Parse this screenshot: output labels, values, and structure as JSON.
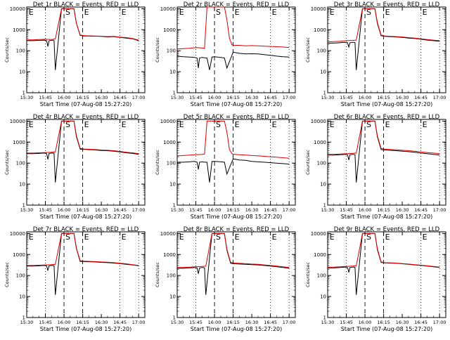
{
  "colors": {
    "events": "#000000",
    "lld": "#e00000",
    "background": "#ffffff"
  },
  "shared": {
    "xlabel": "Start Time (07-Aug-08 15:27:20)",
    "ylabel": "Counts/sec",
    "xticks": [
      "15:30",
      "15:45",
      "16:00",
      "16:15",
      "16:30",
      "16:45",
      "17:00"
    ],
    "yticks": [
      "1",
      "10",
      "100",
      "1000",
      "10000"
    ],
    "ylim": [
      1,
      12000
    ],
    "markers": [
      "E",
      "S",
      "E",
      "E"
    ]
  },
  "chart_data": [
    {
      "type": "line",
      "title": "Det 1r BLACK = Events, RED = LLD",
      "series": [
        {
          "name": "Events",
          "x": [
            0,
            5,
            10,
            14,
            16,
            17,
            18,
            20,
            21,
            22,
            23,
            28,
            30,
            33,
            36,
            38,
            40,
            43,
            46,
            55,
            60,
            65,
            70,
            75,
            80,
            85,
            90
          ],
          "values": [
            300,
            300,
            310,
            320,
            300,
            160,
            300,
            310,
            320,
            300,
            12,
            10000,
            10000,
            10000,
            10000,
            10000,
            2000,
            540,
            500,
            490,
            480,
            450,
            470,
            430,
            400,
            370,
            300
          ]
        },
        {
          "name": "LLD",
          "x": [
            0,
            5,
            10,
            15,
            20,
            23,
            28,
            30,
            33,
            36,
            38,
            40,
            43,
            46,
            55,
            60,
            65,
            70,
            75,
            80,
            85,
            90
          ],
          "values": [
            330,
            330,
            340,
            350,
            340,
            360,
            10000,
            10000,
            10000,
            10000,
            10000,
            2000,
            560,
            520,
            500,
            490,
            470,
            480,
            440,
            420,
            380,
            320
          ]
        }
      ]
    },
    {
      "type": "line",
      "title": "Det 2r BLACK = Events, RED = LLD",
      "series": [
        {
          "name": "Events",
          "x": [
            0,
            5,
            10,
            14,
            16,
            17,
            18,
            20,
            22,
            24,
            26,
            28,
            30,
            35,
            38,
            40,
            45,
            50,
            55,
            60,
            65,
            70,
            75,
            80,
            85,
            90
          ],
          "values": [
            55,
            52,
            50,
            48,
            45,
            15,
            45,
            48,
            46,
            45,
            12,
            50,
            52,
            48,
            45,
            15,
            85,
            75,
            70,
            72,
            70,
            65,
            60,
            55,
            52,
            50
          ]
        },
        {
          "name": "LLD",
          "x": [
            0,
            5,
            10,
            15,
            20,
            22,
            24,
            26,
            28,
            30,
            35,
            38,
            40,
            42,
            44,
            46,
            50,
            55,
            60,
            65,
            70,
            75,
            80,
            85,
            90
          ],
          "values": [
            120,
            125,
            130,
            140,
            135,
            130,
            12000,
            12000,
            12000,
            12000,
            12000,
            12000,
            3000,
            400,
            190,
            180,
            180,
            170,
            175,
            170,
            165,
            160,
            155,
            150,
            140
          ]
        }
      ]
    },
    {
      "type": "line",
      "title": "Det 3r BLACK = Events, RED = LLD",
      "series": [
        {
          "name": "Events",
          "x": [
            0,
            5,
            10,
            14,
            16,
            17,
            18,
            20,
            21,
            22,
            23,
            28,
            30,
            33,
            36,
            38,
            40,
            43,
            46,
            55,
            60,
            65,
            70,
            75,
            80,
            85,
            90
          ],
          "values": [
            230,
            230,
            240,
            250,
            240,
            150,
            240,
            250,
            250,
            240,
            12,
            10000,
            10000,
            10000,
            10000,
            10000,
            2000,
            520,
            480,
            450,
            430,
            400,
            380,
            350,
            320,
            300,
            280
          ]
        },
        {
          "name": "LLD",
          "x": [
            0,
            5,
            10,
            15,
            20,
            23,
            28,
            30,
            33,
            36,
            38,
            40,
            43,
            46,
            55,
            60,
            65,
            70,
            75,
            80,
            85,
            90
          ],
          "values": [
            260,
            270,
            280,
            300,
            310,
            320,
            10000,
            10000,
            10000,
            10000,
            10000,
            2200,
            560,
            500,
            470,
            450,
            420,
            400,
            370,
            340,
            320,
            300
          ]
        }
      ]
    },
    {
      "type": "line",
      "title": "Det 4r BLACK = Events, RED = LLD",
      "series": [
        {
          "name": "Events",
          "x": [
            0,
            5,
            10,
            14,
            16,
            17,
            18,
            20,
            21,
            22,
            23,
            28,
            30,
            33,
            36,
            38,
            40,
            43,
            46,
            55,
            60,
            65,
            70,
            75,
            80,
            85,
            90
          ],
          "values": [
            280,
            280,
            290,
            300,
            290,
            150,
            290,
            300,
            300,
            290,
            12,
            10000,
            10000,
            10000,
            10000,
            10000,
            1800,
            460,
            450,
            420,
            400,
            390,
            370,
            340,
            310,
            290,
            260
          ]
        },
        {
          "name": "LLD",
          "x": [
            0,
            5,
            10,
            15,
            20,
            23,
            28,
            30,
            33,
            36,
            38,
            40,
            43,
            46,
            55,
            60,
            65,
            70,
            75,
            80,
            85,
            90
          ],
          "values": [
            300,
            300,
            310,
            320,
            330,
            340,
            10000,
            10000,
            10000,
            10000,
            10000,
            2000,
            500,
            470,
            440,
            420,
            410,
            390,
            360,
            330,
            310,
            280
          ]
        }
      ]
    },
    {
      "type": "line",
      "title": "Det 5r BLACK = Events, RED = LLD",
      "series": [
        {
          "name": "Events",
          "x": [
            0,
            5,
            10,
            14,
            16,
            17,
            18,
            20,
            22,
            24,
            26,
            28,
            30,
            35,
            38,
            40,
            45,
            50,
            55,
            60,
            65,
            70,
            75,
            80,
            85,
            90
          ],
          "values": [
            110,
            110,
            115,
            120,
            110,
            50,
            110,
            115,
            110,
            110,
            12,
            120,
            120,
            115,
            110,
            30,
            160,
            140,
            135,
            120,
            115,
            110,
            105,
            100,
            95,
            90
          ]
        },
        {
          "name": "LLD",
          "x": [
            0,
            5,
            10,
            15,
            20,
            22,
            24,
            26,
            28,
            30,
            35,
            38,
            40,
            42,
            44,
            46,
            50,
            55,
            60,
            65,
            70,
            75,
            80,
            85,
            90
          ],
          "values": [
            220,
            230,
            240,
            250,
            260,
            270,
            10000,
            10000,
            10000,
            10000,
            10000,
            10000,
            3000,
            450,
            280,
            260,
            250,
            240,
            230,
            220,
            210,
            200,
            190,
            180,
            170
          ]
        }
      ]
    },
    {
      "type": "line",
      "title": "Det 6r BLACK = Events, RED = LLD",
      "series": [
        {
          "name": "Events",
          "x": [
            0,
            5,
            10,
            14,
            16,
            17,
            18,
            20,
            21,
            22,
            23,
            28,
            30,
            33,
            36,
            38,
            40,
            43,
            46,
            55,
            60,
            65,
            70,
            75,
            80,
            85,
            90
          ],
          "values": [
            240,
            240,
            250,
            260,
            250,
            140,
            250,
            260,
            260,
            250,
            12,
            10000,
            10000,
            10000,
            10000,
            10000,
            1800,
            440,
            420,
            390,
            370,
            350,
            330,
            300,
            280,
            260,
            240
          ]
        },
        {
          "name": "LLD",
          "x": [
            0,
            5,
            10,
            15,
            20,
            23,
            28,
            30,
            33,
            36,
            38,
            40,
            43,
            46,
            55,
            60,
            65,
            70,
            75,
            80,
            85,
            90
          ],
          "values": [
            260,
            260,
            270,
            280,
            290,
            300,
            10000,
            10000,
            10000,
            10000,
            10000,
            2000,
            500,
            460,
            430,
            410,
            390,
            370,
            340,
            320,
            300,
            280
          ]
        }
      ]
    },
    {
      "type": "line",
      "title": "Det 7r BLACK = Events, RED = LLD",
      "series": [
        {
          "name": "Events",
          "x": [
            0,
            5,
            10,
            14,
            16,
            17,
            18,
            20,
            21,
            22,
            23,
            28,
            30,
            33,
            36,
            38,
            40,
            43,
            46,
            55,
            60,
            65,
            70,
            75,
            80,
            85,
            90
          ],
          "values": [
            280,
            280,
            290,
            300,
            290,
            170,
            290,
            300,
            300,
            290,
            12,
            10000,
            10000,
            10000,
            10000,
            10000,
            1900,
            470,
            460,
            440,
            420,
            410,
            390,
            370,
            340,
            320,
            290
          ]
        },
        {
          "name": "LLD",
          "x": [
            0,
            5,
            10,
            15,
            20,
            23,
            28,
            30,
            33,
            36,
            38,
            40,
            43,
            46,
            55,
            60,
            65,
            70,
            75,
            80,
            85,
            90
          ],
          "values": [
            300,
            300,
            310,
            320,
            330,
            340,
            10000,
            10000,
            10000,
            10000,
            10000,
            2000,
            510,
            480,
            460,
            440,
            430,
            410,
            380,
            360,
            330,
            300
          ]
        }
      ]
    },
    {
      "type": "line",
      "title": "Det 8r BLACK = Events, RED = LLD",
      "series": [
        {
          "name": "Events",
          "x": [
            0,
            5,
            10,
            14,
            16,
            17,
            18,
            20,
            21,
            22,
            23,
            28,
            30,
            33,
            36,
            38,
            40,
            43,
            46,
            55,
            60,
            65,
            70,
            75,
            80,
            85,
            90
          ],
          "values": [
            220,
            220,
            230,
            240,
            230,
            120,
            230,
            240,
            240,
            230,
            12,
            10000,
            10000,
            10000,
            10000,
            10000,
            1600,
            380,
            360,
            340,
            330,
            320,
            300,
            280,
            260,
            240,
            220
          ]
        },
        {
          "name": "LLD",
          "x": [
            0,
            5,
            10,
            15,
            20,
            23,
            28,
            30,
            33,
            36,
            38,
            40,
            43,
            46,
            55,
            60,
            65,
            70,
            75,
            80,
            85,
            90
          ],
          "values": [
            240,
            240,
            250,
            260,
            270,
            280,
            10000,
            10000,
            10000,
            10000,
            10000,
            1800,
            420,
            390,
            370,
            350,
            340,
            320,
            300,
            280,
            260,
            240
          ]
        }
      ]
    },
    {
      "type": "line",
      "title": "Det 9r BLACK = Events, RED = LLD",
      "series": [
        {
          "name": "Events",
          "x": [
            0,
            5,
            10,
            14,
            16,
            17,
            18,
            20,
            21,
            22,
            23,
            28,
            30,
            33,
            36,
            38,
            40,
            43,
            46,
            55,
            60,
            65,
            70,
            75,
            80,
            85,
            90
          ],
          "values": [
            230,
            230,
            240,
            250,
            240,
            140,
            240,
            250,
            250,
            240,
            12,
            10000,
            10000,
            10000,
            10000,
            10000,
            1700,
            420,
            400,
            380,
            360,
            340,
            320,
            300,
            280,
            260,
            240
          ]
        },
        {
          "name": "LLD",
          "x": [
            0,
            5,
            10,
            15,
            20,
            23,
            28,
            30,
            33,
            36,
            38,
            40,
            43,
            46,
            55,
            60,
            65,
            70,
            75,
            80,
            85,
            90
          ],
          "values": [
            250,
            250,
            260,
            270,
            280,
            290,
            10000,
            10000,
            10000,
            10000,
            10000,
            1900,
            440,
            410,
            390,
            370,
            350,
            330,
            310,
            290,
            270,
            250
          ]
        }
      ]
    }
  ]
}
